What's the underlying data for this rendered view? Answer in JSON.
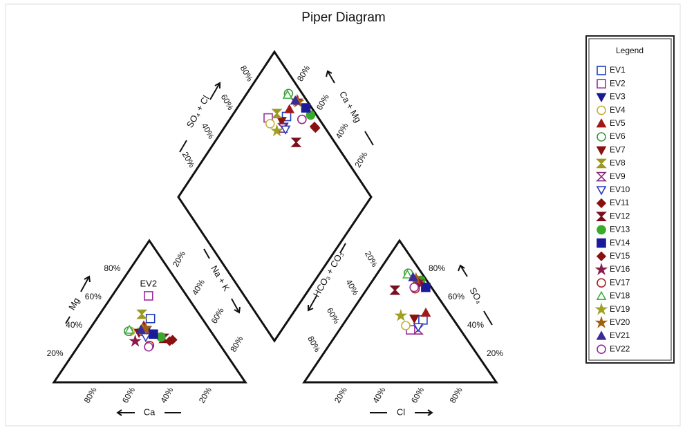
{
  "chart_data": {
    "type": "piper",
    "title": "Piper Diagram",
    "legend_title": "Legend",
    "axis_labels": {
      "ca": "Ca",
      "mg": "Mg",
      "na_k": "Na + K",
      "hco3_co3": "HCO₃ + CO₃",
      "so4": "SO₄",
      "cl": "Cl",
      "so4_cl": "SO₄ + Cl",
      "ca_mg": "Ca + Mg"
    },
    "ticks": [
      {
        "value": 20,
        "label": "20%"
      },
      {
        "value": 40,
        "label": "40%"
      },
      {
        "value": 60,
        "label": "60%"
      },
      {
        "value": 80,
        "label": "80%"
      }
    ],
    "annotations": [
      {
        "text": "EV2"
      }
    ],
    "series": [
      {
        "name": "EV1",
        "color": "#1f3fbf",
        "marker": "square",
        "filled": false,
        "ca": 27,
        "mg": 45,
        "cl": 40,
        "so4": 44
      },
      {
        "name": "EV2",
        "color": "#9b2c9b",
        "marker": "square",
        "filled": false,
        "ca": 20,
        "mg": 61,
        "cl": 37,
        "so4": 37
      },
      {
        "name": "EV3",
        "color": "#1a1a8c",
        "marker": "triangle-down",
        "filled": true,
        "ca": 33,
        "mg": 37,
        "cl": 40,
        "so4": 39
      },
      {
        "name": "EV4",
        "color": "#c8b030",
        "marker": "circle",
        "filled": false,
        "ca": 42,
        "mg": 36,
        "cl": 33,
        "so4": 40
      },
      {
        "name": "EV5",
        "color": "#a01818",
        "marker": "triangle",
        "filled": true,
        "ca": 33,
        "mg": 40,
        "cl": 39,
        "so4": 49
      },
      {
        "name": "EV6",
        "color": "#3a9a3a",
        "marker": "circle",
        "filled": false,
        "ca": 43,
        "mg": 36,
        "cl": 16,
        "so4": 77
      },
      {
        "name": "EV7",
        "color": "#8b1010",
        "marker": "triangle-down",
        "filled": true,
        "ca": 38,
        "mg": 35,
        "cl": 35,
        "so4": 45
      },
      {
        "name": "EV8",
        "color": "#9a9a20",
        "marker": "hourglass",
        "filled": true,
        "ca": 30,
        "mg": 48,
        "cl": 15,
        "so4": 65
      },
      {
        "name": "EV9",
        "color": "#8b2a7a",
        "marker": "hourglass",
        "filled": false,
        "ca": 34,
        "mg": 36,
        "cl": 41,
        "so4": 37
      },
      {
        "name": "EV10",
        "color": "#2a3ac0",
        "marker": "triangle-down",
        "filled": false,
        "ca": 36,
        "mg": 32,
        "cl": 40,
        "so4": 39
      },
      {
        "name": "EV11",
        "color": "#8b1010",
        "marker": "diamond",
        "filled": true,
        "ca": 23,
        "mg": 30,
        "cl": 24,
        "so4": 71
      },
      {
        "name": "EV12",
        "color": "#7a0f1f",
        "marker": "hourglass",
        "filled": true,
        "ca": 27,
        "mg": 31,
        "cl": 15,
        "so4": 65
      },
      {
        "name": "EV13",
        "color": "#3aaa2a",
        "marker": "circle",
        "filled": true,
        "ca": 28,
        "mg": 32,
        "cl": 25,
        "so4": 72
      },
      {
        "name": "EV14",
        "color": "#1a1a9a",
        "marker": "square",
        "filled": true,
        "ca": 31,
        "mg": 34,
        "cl": 30,
        "so4": 67
      },
      {
        "name": "EV15",
        "color": "#8b1010",
        "marker": "diamond",
        "filled": true,
        "ca": 25,
        "mg": 29,
        "cl": 25,
        "so4": 70
      },
      {
        "name": "EV16",
        "color": "#8b1a4a",
        "marker": "star",
        "filled": true,
        "ca": 43,
        "mg": 29,
        "cl": 24,
        "so4": 71
      },
      {
        "name": "EV17",
        "color": "#b02020",
        "marker": "circle",
        "filled": false,
        "ca": 37,
        "mg": 26,
        "cl": 25,
        "so4": 66
      },
      {
        "name": "EV18",
        "color": "#40b040",
        "marker": "triangle",
        "filled": false,
        "ca": 42,
        "mg": 37,
        "cl": 16,
        "so4": 76
      },
      {
        "name": "EV19",
        "color": "#a0a020",
        "marker": "star",
        "filled": true,
        "ca": 35,
        "mg": 37,
        "cl": 27,
        "so4": 47
      },
      {
        "name": "EV20",
        "color": "#a06010",
        "marker": "star",
        "filled": true,
        "ca": 33,
        "mg": 38,
        "cl": 22,
        "so4": 73
      },
      {
        "name": "EV21",
        "color": "#3a2a9a",
        "marker": "triangle",
        "filled": true,
        "ca": 36,
        "mg": 37,
        "cl": 20,
        "so4": 74
      },
      {
        "name": "EV22",
        "color": "#9a2a9a",
        "marker": "circle",
        "filled": false,
        "ca": 38,
        "mg": 25,
        "cl": 24,
        "so4": 67
      }
    ]
  }
}
